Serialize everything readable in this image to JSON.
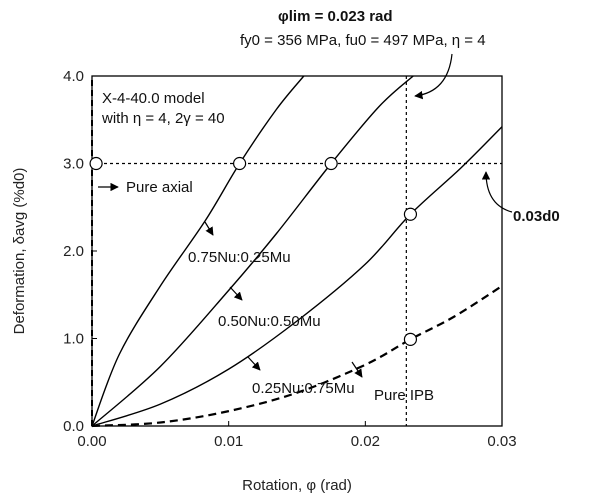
{
  "chart_data": {
    "type": "line",
    "xlabel": "Rotation, φ (rad)",
    "ylabel": "Deformation, δavg (%d0)",
    "xlim": [
      0,
      0.03
    ],
    "ylim": [
      0,
      4.0
    ],
    "x_ticks": [
      "0.00",
      "0.01",
      "0.02",
      "0.03"
    ],
    "y_ticks": [
      "0.0",
      "1.0",
      "2.0",
      "3.0",
      "4.0"
    ],
    "grid": false,
    "model_label": [
      "X-4-40.0 model",
      "with η = 4, 2γ = 40"
    ],
    "annotations": {
      "phi_lim": {
        "label": "φlim = 0.023 rad",
        "value": 0.023
      },
      "material": "fy0 = 356 MPa, fu0 = 497 MPa, η = 4",
      "deform_lim": {
        "label": "0.03d0",
        "value": 3.0
      }
    },
    "series": [
      {
        "name": "Pure axial",
        "style": "dashed",
        "x": [
          0,
          0,
          0
        ],
        "y": [
          0,
          2.0,
          4.0
        ]
      },
      {
        "name": "0.75Nu:0.25Mu",
        "style": "solid",
        "x": [
          0,
          0.002,
          0.005,
          0.0083,
          0.0108,
          0.0135,
          0.0155
        ],
        "y": [
          0,
          0.82,
          1.6,
          2.35,
          3.0,
          3.62,
          4.0
        ]
      },
      {
        "name": "0.50Nu:0.50Mu",
        "style": "solid",
        "x": [
          0,
          0.005,
          0.01,
          0.0135,
          0.0175,
          0.021,
          0.0235
        ],
        "y": [
          0,
          0.68,
          1.55,
          2.2,
          3.0,
          3.65,
          4.0
        ]
      },
      {
        "name": "0.25Nu:0.75Mu",
        "style": "solid",
        "x": [
          0,
          0.005,
          0.01,
          0.015,
          0.02,
          0.0233,
          0.027,
          0.03
        ],
        "y": [
          0,
          0.25,
          0.65,
          1.2,
          1.85,
          2.42,
          2.95,
          3.42
        ]
      },
      {
        "name": "Pure IPB",
        "style": "dashed",
        "x": [
          0,
          0.005,
          0.01,
          0.015,
          0.02,
          0.0233,
          0.0265,
          0.03
        ],
        "y": [
          0,
          0.04,
          0.17,
          0.38,
          0.7,
          0.99,
          1.25,
          1.6
        ]
      }
    ],
    "markers": [
      {
        "x": 0.0003,
        "y": 3.0
      },
      {
        "x": 0.0108,
        "y": 3.0
      },
      {
        "x": 0.0175,
        "y": 3.0
      },
      {
        "x": 0.0233,
        "y": 2.42
      },
      {
        "x": 0.0233,
        "y": 0.99
      }
    ]
  }
}
